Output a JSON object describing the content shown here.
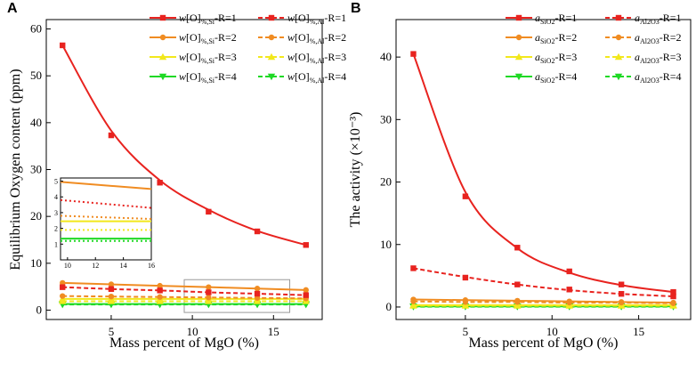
{
  "chart_data": [
    {
      "panel": "A",
      "type": "scatter",
      "xlabel": "Mass percent of MgO (%)",
      "ylabel": "Equilibrium Oxygen content  (ppm)",
      "xlim": [
        1,
        18
      ],
      "ylim": [
        -2,
        62
      ],
      "xticks": [
        5,
        10,
        15
      ],
      "yticks": [
        0,
        10,
        20,
        30,
        40,
        50,
        60
      ],
      "x": [
        2,
        5,
        8,
        11,
        14,
        17
      ],
      "series": [
        {
          "name": "w[O]%,Si-R=1",
          "color": "#e8231f",
          "marker": "square",
          "dash": false,
          "values": [
            56.5,
            37.3,
            27.2,
            21.0,
            16.8,
            13.9
          ],
          "fit": [
            56.5,
            38.3,
            27.7,
            21.4,
            16.9,
            13.9
          ]
        },
        {
          "name": "w[O]%,Al-R=1",
          "color": "#e8231f",
          "marker": "square",
          "dash": true,
          "values": [
            4.9,
            4.5,
            4.2,
            3.8,
            3.5,
            3.2
          ],
          "fit": [
            4.9,
            4.5,
            4.2,
            3.8,
            3.5,
            3.2
          ]
        },
        {
          "name": "w[O]%,Si-R=2",
          "color": "#f08c22",
          "marker": "circle",
          "dash": false,
          "values": [
            5.8,
            5.5,
            5.2,
            4.9,
            4.6,
            4.3
          ],
          "fit": [
            5.8,
            5.5,
            5.2,
            4.9,
            4.6,
            4.3
          ]
        },
        {
          "name": "w[O]%,Al-R=2",
          "color": "#f08c22",
          "marker": "circle",
          "dash": true,
          "values": [
            3.0,
            2.9,
            2.8,
            2.7,
            2.6,
            2.5
          ],
          "fit": [
            3.0,
            2.9,
            2.8,
            2.7,
            2.6,
            2.5
          ]
        },
        {
          "name": "w[O]%,Si-R=3",
          "color": "#f2e81c",
          "marker": "triangle-up",
          "dash": false,
          "values": [
            2.4,
            2.4,
            2.4,
            2.4,
            2.4,
            2.4
          ],
          "fit": [
            2.4,
            2.4,
            2.4,
            2.4,
            2.4,
            2.4
          ]
        },
        {
          "name": "w[O]%,Al-R=3",
          "color": "#f2e81c",
          "marker": "triangle-up",
          "dash": true,
          "values": [
            1.9,
            1.9,
            1.9,
            1.9,
            1.9,
            1.9
          ],
          "fit": [
            1.9,
            1.9,
            1.9,
            1.9,
            1.9,
            1.9
          ]
        },
        {
          "name": "w[O]%,Si-R=4",
          "color": "#1fd925",
          "marker": "triangle-down",
          "dash": false,
          "values": [
            1.3,
            1.3,
            1.3,
            1.3,
            1.3,
            1.3
          ],
          "fit": [
            1.3,
            1.3,
            1.3,
            1.3,
            1.3,
            1.3
          ]
        },
        {
          "name": "w[O]%,Al-R=4",
          "color": "#1fd925",
          "marker": "triangle-down",
          "dash": true,
          "values": [
            1.2,
            1.2,
            1.2,
            1.2,
            1.2,
            1.2
          ],
          "fit": [
            1.2,
            1.2,
            1.2,
            1.2,
            1.2,
            1.2
          ]
        }
      ],
      "legend": [
        {
          "pre": "w",
          "mid": "[O]",
          "sub": "%,Si",
          "post": "-R=1"
        },
        {
          "pre": "w",
          "mid": "[O]",
          "sub": "%,Al",
          "post": "-R=1"
        },
        {
          "pre": "w",
          "mid": "[O]",
          "sub": "%,Si",
          "post": "-R=2"
        },
        {
          "pre": "w",
          "mid": "[O]",
          "sub": "%,Al",
          "post": "-R=2"
        },
        {
          "pre": "w",
          "mid": "[O]",
          "sub": "%,Si",
          "post": "-R=3"
        },
        {
          "pre": "w",
          "mid": "[O]",
          "sub": "%,Al",
          "post": "-R=3"
        },
        {
          "pre": "w",
          "mid": "[O]",
          "sub": "%,Si",
          "post": "-R=4"
        },
        {
          "pre": "w",
          "mid": "[O]",
          "sub": "%,Al",
          "post": "-R=4"
        }
      ],
      "inset": {
        "xlim": [
          9.5,
          16
        ],
        "ylim": [
          0,
          5.2
        ],
        "xticks": [
          10,
          12,
          14,
          16
        ],
        "yticks": [
          1,
          2,
          3,
          4,
          5
        ],
        "x": [
          9.5,
          16
        ],
        "lines": [
          {
            "color": "#f08c22",
            "dash": false,
            "values": [
              4.95,
              4.5
            ]
          },
          {
            "color": "#e8231f",
            "dash": true,
            "values": [
              3.8,
              3.3
            ]
          },
          {
            "color": "#f08c22",
            "dash": true,
            "values": [
              2.8,
              2.6
            ]
          },
          {
            "color": "#f2e81c",
            "dash": false,
            "values": [
              2.45,
              2.45
            ]
          },
          {
            "color": "#f2e81c",
            "dash": true,
            "values": [
              1.9,
              1.9
            ]
          },
          {
            "color": "#1fd925",
            "dash": false,
            "values": [
              1.35,
              1.35
            ]
          },
          {
            "color": "#1fd925",
            "dash": true,
            "values": [
              1.2,
              1.2
            ]
          }
        ]
      },
      "zoom_box": {
        "xlim": [
          9.5,
          16
        ],
        "ylim": [
          -0.5,
          6.5
        ]
      }
    },
    {
      "panel": "B",
      "type": "scatter",
      "xlabel": "Mass percent of MgO (%)",
      "ylabel": "The activity (×10⁻³)",
      "xlim": [
        1,
        18
      ],
      "ylim": [
        -2,
        46
      ],
      "xticks": [
        5,
        10,
        15
      ],
      "yticks": [
        0,
        10,
        20,
        30,
        40
      ],
      "x": [
        2,
        5,
        8,
        11,
        14,
        17
      ],
      "series": [
        {
          "name": "aSiO2-R=1",
          "color": "#e8231f",
          "marker": "square",
          "dash": false,
          "values": [
            40.5,
            17.7,
            9.5,
            5.7,
            3.6,
            2.4
          ],
          "fit": [
            40.5,
            18.4,
            9.4,
            5.5,
            3.5,
            2.4
          ]
        },
        {
          "name": "aAl2O3-R=1",
          "color": "#e8231f",
          "marker": "square",
          "dash": true,
          "values": [
            6.2,
            4.7,
            3.6,
            2.8,
            2.1,
            1.7
          ],
          "fit": [
            6.2,
            4.8,
            3.6,
            2.7,
            2.1,
            1.7
          ]
        },
        {
          "name": "aSiO2-R=2",
          "color": "#f08c22",
          "marker": "circle",
          "dash": false,
          "values": [
            1.2,
            1.1,
            1.0,
            0.9,
            0.8,
            0.7
          ],
          "fit": [
            1.2,
            1.1,
            1.0,
            0.9,
            0.8,
            0.7
          ]
        },
        {
          "name": "aAl2O3-R=2",
          "color": "#f08c22",
          "marker": "circle",
          "dash": true,
          "values": [
            0.9,
            0.8,
            0.8,
            0.7,
            0.7,
            0.6
          ],
          "fit": [
            0.9,
            0.8,
            0.8,
            0.7,
            0.7,
            0.6
          ]
        },
        {
          "name": "aSiO2-R=3",
          "color": "#f2e81c",
          "marker": "triangle-up",
          "dash": false,
          "values": [
            0.3,
            0.3,
            0.3,
            0.3,
            0.3,
            0.3
          ],
          "fit": [
            0.3,
            0.3,
            0.3,
            0.3,
            0.3,
            0.3
          ]
        },
        {
          "name": "aAl2O3-R=3",
          "color": "#f2e81c",
          "marker": "triangle-up",
          "dash": true,
          "values": [
            0.2,
            0.2,
            0.2,
            0.2,
            0.2,
            0.2
          ],
          "fit": [
            0.2,
            0.2,
            0.2,
            0.2,
            0.2,
            0.2
          ]
        },
        {
          "name": "aSiO2-R=4",
          "color": "#1fd925",
          "marker": "triangle-down",
          "dash": false,
          "values": [
            0.1,
            0.1,
            0.1,
            0.1,
            0.1,
            0.1
          ],
          "fit": [
            0.1,
            0.1,
            0.1,
            0.1,
            0.1,
            0.1
          ]
        },
        {
          "name": "aAl2O3-R=4",
          "color": "#1fd925",
          "marker": "triangle-down",
          "dash": true,
          "values": [
            0.05,
            0.05,
            0.05,
            0.05,
            0.05,
            0.05
          ],
          "fit": [
            0.05,
            0.05,
            0.05,
            0.05,
            0.05,
            0.05
          ]
        }
      ],
      "legend": [
        {
          "pre": "a",
          "mid": "",
          "sub": "SiO2",
          "post": "-R=1"
        },
        {
          "pre": "a",
          "mid": "",
          "sub": "Al2O3",
          "post": "-R=1"
        },
        {
          "pre": "a",
          "mid": "",
          "sub": "SiO2",
          "post": "-R=2"
        },
        {
          "pre": "a",
          "mid": "",
          "sub": "Al2O3",
          "post": "-R=2"
        },
        {
          "pre": "a",
          "mid": "",
          "sub": "SiO2",
          "post": "-R=3"
        },
        {
          "pre": "a",
          "mid": "",
          "sub": "Al2O3",
          "post": "-R=3"
        },
        {
          "pre": "a",
          "mid": "",
          "sub": "SiO2",
          "post": "-R=4"
        },
        {
          "pre": "a",
          "mid": "",
          "sub": "Al2O3",
          "post": "-R=4"
        }
      ]
    }
  ]
}
